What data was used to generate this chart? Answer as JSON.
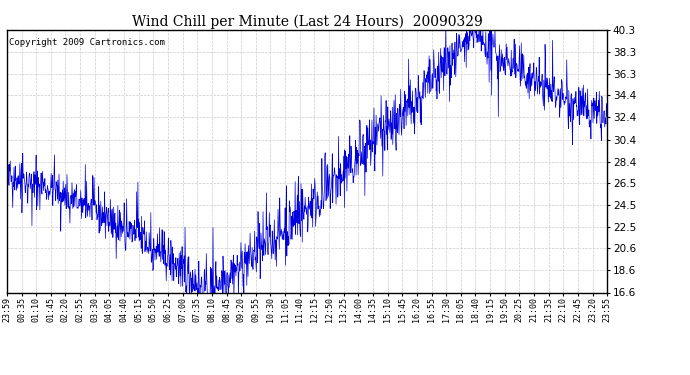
{
  "title": "Wind Chill per Minute (Last 24 Hours)  20090329",
  "copyright": "Copyright 2009 Cartronics.com",
  "line_color": "#0000dd",
  "bg_color": "#ffffff",
  "plot_bg_color": "#ffffff",
  "grid_color": "#cccccc",
  "ylim": [
    16.6,
    40.3
  ],
  "yticks": [
    16.6,
    18.6,
    20.6,
    22.5,
    24.5,
    26.5,
    28.4,
    30.4,
    32.4,
    34.4,
    36.3,
    38.3,
    40.3
  ],
  "xtick_labels": [
    "23:59",
    "00:35",
    "01:10",
    "01:45",
    "02:20",
    "02:55",
    "03:30",
    "04:05",
    "04:40",
    "05:15",
    "05:50",
    "06:25",
    "07:00",
    "07:35",
    "08:10",
    "08:45",
    "09:20",
    "09:55",
    "10:30",
    "11:05",
    "11:40",
    "12:15",
    "12:50",
    "13:25",
    "14:00",
    "14:35",
    "15:10",
    "15:45",
    "16:20",
    "16:55",
    "17:30",
    "18:05",
    "18:40",
    "19:15",
    "19:50",
    "20:25",
    "21:00",
    "21:35",
    "22:10",
    "22:45",
    "23:20",
    "23:55"
  ],
  "figsize": [
    6.9,
    3.75
  ],
  "dpi": 100
}
